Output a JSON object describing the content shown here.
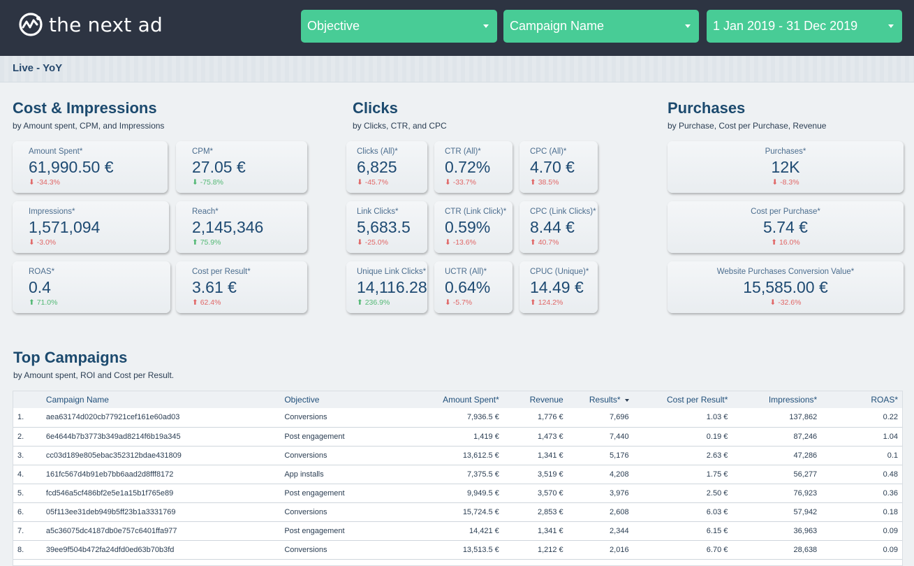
{
  "header": {
    "logo_text": "the next ad",
    "filters": [
      {
        "label": "Objective"
      },
      {
        "label": "Campaign Name"
      },
      {
        "label": "1 Jan 2019 - 31 Dec 2019"
      }
    ]
  },
  "subheader": {
    "label": "Live - YoY"
  },
  "sections": {
    "cost": {
      "title": "Cost & Impressions",
      "subtitle": "by Amount spent, CPM, and Impressions",
      "cards": [
        {
          "label": "Amount Spent*",
          "value": "61,990.50 €",
          "change": "⬇ -34.3%"
        },
        {
          "label": "CPM*",
          "value": "27.05 €",
          "change": "⬇ -75.8%"
        },
        {
          "label": "Impressions*",
          "value": "1,571,094",
          "change": "⬇ -3.0%"
        },
        {
          "label": "Reach*",
          "value": "2,145,346",
          "change": "⬆ 75.9%"
        },
        {
          "label": "ROAS*",
          "value": "0.4",
          "change": "⬆ 71.0%"
        },
        {
          "label": "Cost per Result*",
          "value": "3.61 €",
          "change": "⬆ 62.4%"
        }
      ]
    },
    "clicks": {
      "title": "Clicks",
      "subtitle": "by Clicks, CTR, and CPC",
      "cards": [
        {
          "label": "Clicks (All)*",
          "value": "6,825",
          "change": "⬇ -45.7%"
        },
        {
          "label": "CTR (All)*",
          "value": "0.72%",
          "change": "⬇ -33.7%"
        },
        {
          "label": "CPC (All)*",
          "value": "4.70 €",
          "change": "⬆ 38.5%"
        },
        {
          "label": "Link Clicks*",
          "value": "5,683.5",
          "change": "⬇ -25.0%"
        },
        {
          "label": "CTR (Link Click)*",
          "value": "0.59%",
          "change": "⬇ -13.6%"
        },
        {
          "label": "CPC (Link Clicks)*",
          "value": "8.44 €",
          "change": "⬆ 40.7%"
        },
        {
          "label": "Unique Link Clicks*",
          "value": "14,116.28",
          "change": "⬆ 236.9%"
        },
        {
          "label": "UCTR (All)*",
          "value": "0.64%",
          "change": "⬇ -5.7%"
        },
        {
          "label": "CPUC (Unique)*",
          "value": "14.49 €",
          "change": "⬆ 124.2%"
        }
      ]
    },
    "purchases": {
      "title": "Purchases",
      "subtitle": "by Purchase, Cost per Purchase, Revenue",
      "cards": [
        {
          "label": "Purchases*",
          "value": "12K",
          "change": "⬇ -8.3%"
        },
        {
          "label": "Cost per Purchase*",
          "value": "5.74 €",
          "change": "⬆ 16.0%"
        },
        {
          "label": "Website Purchases Conversion Value*",
          "value": "15,585.00 €",
          "change": "⬇ -32.6%"
        }
      ]
    },
    "campaigns": {
      "title": "Top Campaigns",
      "subtitle": "by Amount spent, ROI and Cost per Result."
    }
  },
  "colors": {
    "accent": "#48cc96",
    "header_bg": "#2d3442",
    "negative": "#e06565",
    "positive": "#52b874"
  },
  "table": {
    "columns": [
      "",
      "Campaign Name",
      "Objective",
      "Amount Spent*",
      "Revenue",
      "Results*",
      "Cost per Result*",
      "Impressions*",
      "ROAS*"
    ],
    "rows": [
      [
        "1.",
        "aea63174d020cb77921cef161e60ad03",
        "Conversions",
        "7,936.5 €",
        "1,776 €",
        "7,696",
        "1.03 €",
        "137,862",
        "0.22"
      ],
      [
        "2.",
        "6e4644b7b3773b349ad8214f6b19a345",
        "Post engagement",
        "1,419 €",
        "1,473 €",
        "7,440",
        "0.19 €",
        "87,246",
        "1.04"
      ],
      [
        "3.",
        "cc03d189e805ebac352312bdae431809",
        "Conversions",
        "13,612.5 €",
        "1,341 €",
        "5,176",
        "2.63 €",
        "47,286",
        "0.1"
      ],
      [
        "4.",
        "161fc567d4b91eb7bb6aad2d8fff8172",
        "App installs",
        "7,375.5 €",
        "3,519 €",
        "4,208",
        "1.75 €",
        "56,277",
        "0.48"
      ],
      [
        "5.",
        "fcd546a5cf486bf2e5e1a15b1f765e89",
        "Post engagement",
        "9,949.5 €",
        "3,570 €",
        "3,976",
        "2.50 €",
        "76,923",
        "0.36"
      ],
      [
        "6.",
        "05f113ee31deb949b5ff23b1a3331769",
        "Conversions",
        "15,724.5 €",
        "2,853 €",
        "2,608",
        "6.03 €",
        "57,942",
        "0.18"
      ],
      [
        "7.",
        "a5c36075dc4187db0e757c6401ffa977",
        "Post engagement",
        "14,421 €",
        "1,341 €",
        "2,344",
        "6.15 €",
        "36,963",
        "0.09"
      ],
      [
        "8.",
        "39ee9f504b472fa24dfd0ed63b70b3fd",
        "Conversions",
        "13,513.5 €",
        "1,212 €",
        "2,016",
        "6.70 €",
        "28,638",
        "0.09"
      ]
    ]
  }
}
